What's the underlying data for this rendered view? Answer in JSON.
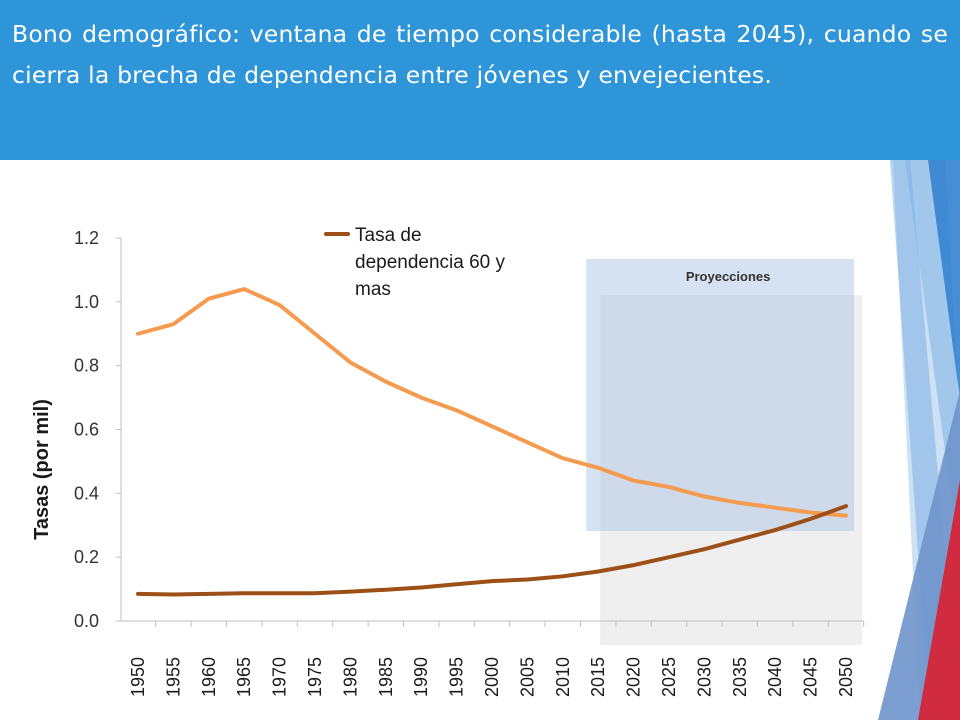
{
  "header": {
    "title": "Bono demográfico: ventana de tiempo considerable (hasta 2045), cuando se cierra la brecha de dependencia entre jóvenes y envejecientes."
  },
  "colors": {
    "header_bg": "#2f95d9",
    "series_youth": "#f59b4f",
    "series_elderly": "#9c4f17",
    "projection_box": "#cfdcee",
    "accent_red": "#d12b3f",
    "accent_blue": "#2f7fcf"
  },
  "chart_data": {
    "type": "line",
    "title": "",
    "xlabel": "",
    "ylabel": "Tasas (por mil)",
    "ylim": [
      0,
      1.2
    ],
    "yticks": [
      "0.0",
      "0.2",
      "0.4",
      "0.6",
      "0.8",
      "1.0",
      "1.2"
    ],
    "yticks_values": [
      0.0,
      0.2,
      0.4,
      0.6,
      0.8,
      1.0,
      1.2
    ],
    "grid": false,
    "legend_placement": "top-center",
    "x": [
      "1950",
      "1955",
      "1960",
      "1965",
      "1970",
      "1975",
      "1980",
      "1985",
      "1990",
      "1995",
      "2000",
      "2005",
      "2010",
      "2015",
      "2020",
      "2025",
      "2030",
      "2035",
      "2040",
      "2045",
      "2050"
    ],
    "series": [
      {
        "name": "",
        "values": [
          0.9,
          0.93,
          1.01,
          1.04,
          0.99,
          0.9,
          0.81,
          0.75,
          0.7,
          0.66,
          0.61,
          0.56,
          0.51,
          0.48,
          0.44,
          0.42,
          0.39,
          0.37,
          0.355,
          0.34,
          0.33
        ]
      },
      {
        "name": "Tasa de dependencia 60 y mas",
        "values": [
          0.085,
          0.083,
          0.085,
          0.087,
          0.087,
          0.087,
          0.092,
          0.098,
          0.105,
          0.115,
          0.125,
          0.13,
          0.14,
          0.155,
          0.175,
          0.2,
          0.225,
          0.255,
          0.285,
          0.32,
          0.36
        ]
      }
    ],
    "legend": {
      "lines": [
        "Tasa de",
        "dependencia 60 y",
        "mas"
      ]
    },
    "annotations": [
      {
        "text": "Proyecciones",
        "x_from": "2015",
        "x_to": "2050"
      }
    ]
  }
}
